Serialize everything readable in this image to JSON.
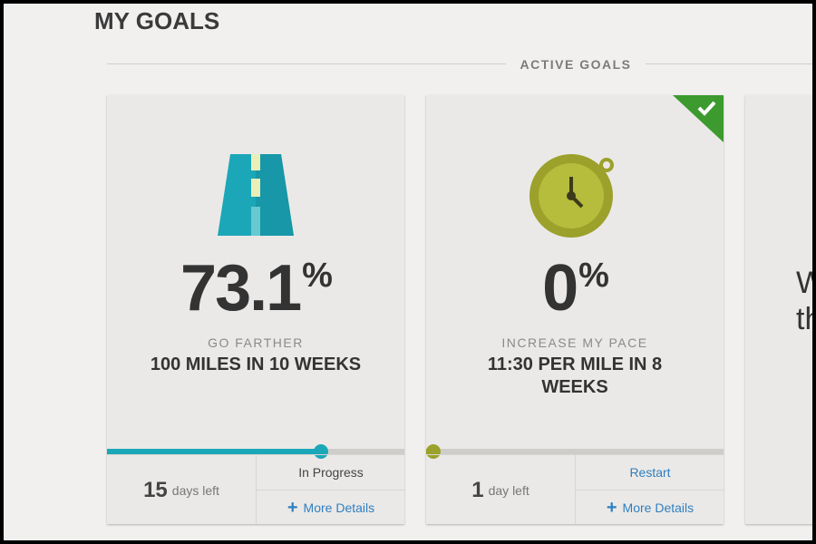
{
  "header": {
    "title": "MY GOALS",
    "section": "ACTIVE GOALS"
  },
  "goals": [
    {
      "progress": 73.1,
      "percent_sign": "%",
      "category": "GO FARTHER",
      "goal": "100 MILES IN 10 WEEKS",
      "days": 15,
      "days_label": "days left",
      "status": "In Progress",
      "details": "More Details",
      "completed": false,
      "color": "#1ba7b8"
    },
    {
      "progress": 0,
      "percent_sign": "%",
      "category": "INCREASE MY PACE",
      "goal": "11:30 PER MILE IN 8 WEEKS",
      "days": 1,
      "days_label": "day left",
      "status": "Restart",
      "details": "More Details",
      "completed": true,
      "color": "#9ba12a"
    }
  ],
  "partial_card": {
    "lines": [
      "W",
      "th"
    ]
  }
}
